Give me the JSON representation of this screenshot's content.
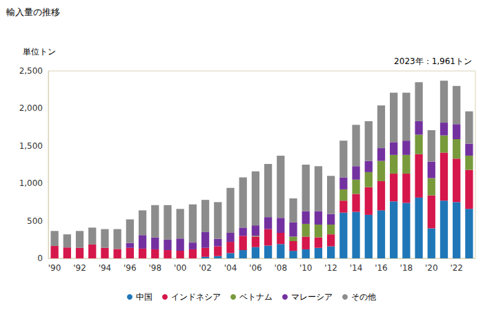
{
  "chart_data": {
    "type": "bar",
    "title": "輸入量の推移",
    "subtitle": "単位トン",
    "annotation": "2023年：1,961トン",
    "stacked": true,
    "grid": false,
    "legend": "bottom",
    "categories": [
      "'90",
      null,
      "'92",
      null,
      "'94",
      null,
      "'96",
      null,
      "'98",
      null,
      "'00",
      null,
      "'02",
      null,
      "'04",
      null,
      "'06",
      null,
      "'08",
      null,
      "'10",
      null,
      "'12",
      null,
      "'14",
      null,
      "'16",
      null,
      "'18",
      null,
      "'20",
      null,
      "'22",
      null
    ],
    "ylim": [
      0,
      2500
    ],
    "yticks": [
      0,
      500,
      {
        "value": 1000,
        "label": "1,000"
      },
      {
        "value": 1500,
        "label": "1,500"
      },
      {
        "value": 2000,
        "label": "2,000"
      },
      {
        "value": 2500,
        "label": "2,500"
      }
    ],
    "series": [
      {
        "name": "中国",
        "color": "#1f77b8",
        "values": [
          0,
          0,
          0,
          0,
          0,
          0,
          0,
          0,
          0,
          0,
          0,
          0,
          20,
          30,
          70,
          110,
          150,
          170,
          190,
          100,
          120,
          140,
          160,
          610,
          620,
          580,
          640,
          760,
          740,
          810,
          400,
          770,
          750,
          660
        ]
      },
      {
        "name": "インドネシア",
        "color": "#d5174b",
        "values": [
          165,
          145,
          140,
          185,
          140,
          125,
          140,
          130,
          120,
          110,
          100,
          120,
          120,
          130,
          150,
          190,
          140,
          220,
          150,
          130,
          170,
          140,
          160,
          160,
          240,
          370,
          390,
          370,
          390,
          580,
          440,
          640,
          580,
          520
        ]
      },
      {
        "name": "ベトナム",
        "color": "#789a3b",
        "values": [
          0,
          0,
          0,
          0,
          0,
          0,
          0,
          0,
          0,
          0,
          0,
          0,
          0,
          0,
          0,
          0,
          10,
          0,
          0,
          60,
          170,
          170,
          130,
          150,
          190,
          200,
          270,
          250,
          250,
          260,
          230,
          230,
          260,
          190
        ]
      },
      {
        "name": "マレーシア",
        "color": "#7331a0",
        "values": [
          0,
          0,
          0,
          0,
          0,
          0,
          65,
          180,
          160,
          140,
          165,
          90,
          210,
          100,
          120,
          110,
          140,
          160,
          200,
          190,
          170,
          180,
          140,
          160,
          180,
          150,
          170,
          170,
          190,
          180,
          220,
          170,
          200,
          160
        ]
      },
      {
        "name": "その他",
        "color": "#8c8c8c",
        "values": [
          200,
          175,
          225,
          225,
          250,
          265,
          315,
          330,
          430,
          460,
          395,
          510,
          430,
          490,
          600,
          670,
          720,
          710,
          830,
          320,
          620,
          600,
          510,
          490,
          550,
          530,
          570,
          660,
          640,
          520,
          420,
          560,
          510,
          431
        ]
      }
    ]
  }
}
